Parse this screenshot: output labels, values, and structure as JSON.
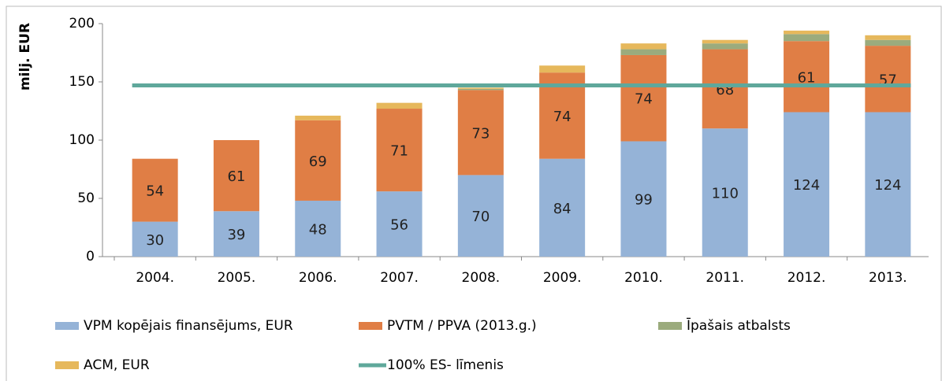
{
  "chart_data": {
    "type": "bar",
    "stacked": true,
    "y_label": "milj. EUR",
    "categories": [
      "2004.",
      "2005.",
      "2006.",
      "2007.",
      "2008.",
      "2009.",
      "2010.",
      "2011.",
      "2012.",
      "2013."
    ],
    "series": [
      {
        "name": "VPM kopējais finansējums, EUR",
        "color": "#95b3d7",
        "data_labels": true,
        "values": [
          30,
          39,
          48,
          56,
          70,
          84,
          99,
          110,
          124,
          124
        ]
      },
      {
        "name": "PVTM / PPVA (2013.g.)",
        "color": "#e07e45",
        "data_labels": true,
        "values": [
          54,
          61,
          69,
          71,
          73,
          74,
          74,
          68,
          61,
          57
        ]
      },
      {
        "name": "Īpašais atbalsts",
        "color": "#9bab7d",
        "values": [
          0,
          0,
          0,
          0,
          1,
          0,
          5,
          5,
          6,
          5
        ]
      },
      {
        "name": "ACM, EUR",
        "color": "#e6b85c",
        "values": [
          0,
          0,
          4,
          5,
          1,
          6,
          5,
          3,
          3,
          4
        ]
      },
      {
        "name": "100% ES- līmenis",
        "type": "line",
        "color": "#5fa89b",
        "values": [
          147,
          147,
          147,
          147,
          147,
          147,
          147,
          147,
          147,
          147
        ]
      }
    ],
    "ylim": [
      0,
      200
    ],
    "yticks": [
      0,
      50,
      100,
      150,
      200
    ],
    "grid": false
  }
}
